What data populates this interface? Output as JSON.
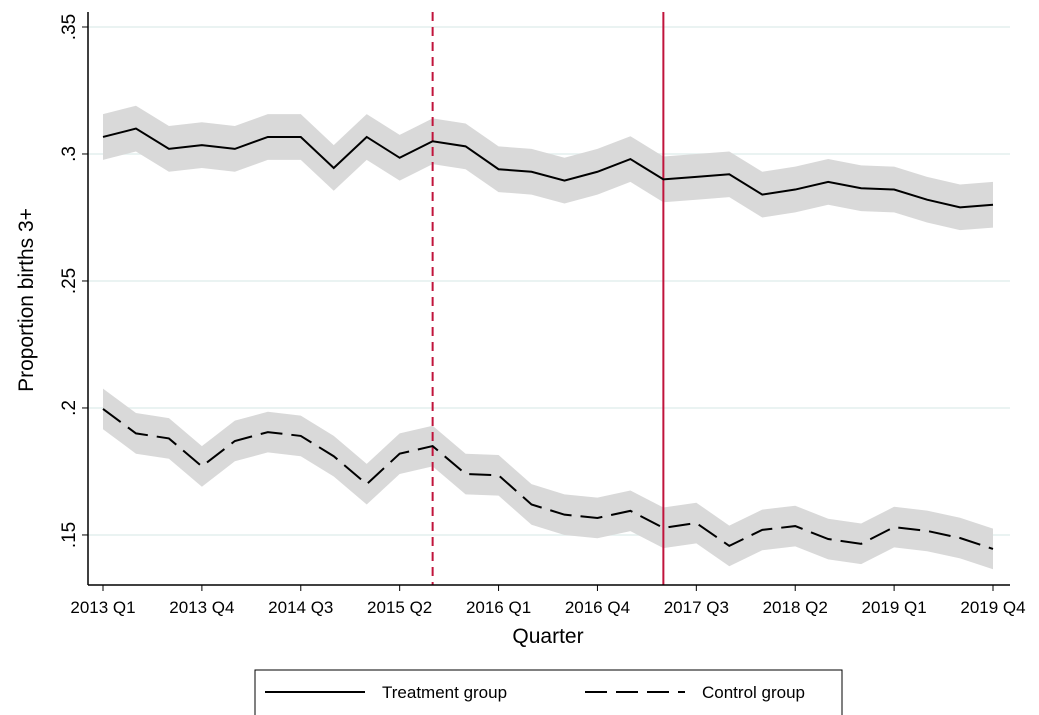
{
  "chart_data": {
    "type": "line",
    "x_label": "Quarter",
    "y_label": "Proportion births 3+",
    "categories": [
      "2013 Q1",
      null,
      null,
      "2013 Q4",
      null,
      null,
      "2014 Q3",
      null,
      null,
      "2015 Q2",
      null,
      null,
      "2016 Q1",
      null,
      null,
      "2016 Q4",
      null,
      null,
      "2017 Q3",
      null,
      null,
      "2018 Q2",
      null,
      null,
      "2019 Q1",
      null,
      null,
      "2019 Q4"
    ],
    "ylim": [
      0.1303,
      0.3559
    ],
    "yticks": [
      {
        "value": 0.15,
        "label": ".15"
      },
      {
        "value": 0.2,
        "label": ".2"
      },
      {
        "value": 0.25,
        "label": ".25"
      },
      {
        "value": 0.3,
        "label": ".3"
      },
      {
        "value": 0.35,
        "label": ".35"
      }
    ],
    "grid": true,
    "grid_color": "#e3efee",
    "band_color": "#d9d9d9",
    "vlines": [
      {
        "x": 10,
        "style": "dashed",
        "color": "#c0143c"
      },
      {
        "x": 17,
        "style": "solid",
        "color": "#c0143c"
      }
    ],
    "series": [
      {
        "name": "Treatment group",
        "color": "#000000",
        "style": "solid",
        "values": [
          0.3067,
          0.31,
          0.302,
          0.3035,
          0.302,
          0.3067,
          0.3067,
          0.2945,
          0.3067,
          0.2985,
          0.305,
          0.303,
          0.294,
          0.293,
          0.2895,
          0.293,
          0.298,
          0.29,
          0.291,
          0.292,
          0.284,
          0.286,
          0.289,
          0.2865,
          0.286,
          0.282,
          0.279,
          0.28
        ],
        "lower": [
          0.2977,
          0.301,
          0.293,
          0.2945,
          0.293,
          0.2977,
          0.2977,
          0.2855,
          0.2977,
          0.2895,
          0.296,
          0.294,
          0.285,
          0.284,
          0.2805,
          0.284,
          0.289,
          0.281,
          0.282,
          0.283,
          0.275,
          0.277,
          0.28,
          0.2775,
          0.277,
          0.273,
          0.27,
          0.271
        ],
        "upper": [
          0.3157,
          0.319,
          0.311,
          0.3125,
          0.311,
          0.3157,
          0.3157,
          0.3035,
          0.3157,
          0.3075,
          0.314,
          0.312,
          0.303,
          0.302,
          0.2985,
          0.302,
          0.307,
          0.299,
          0.3,
          0.301,
          0.293,
          0.295,
          0.298,
          0.2955,
          0.295,
          0.291,
          0.288,
          0.289
        ]
      },
      {
        "name": "Control group",
        "color": "#000000",
        "style": "dashed",
        "values": [
          0.1996,
          0.19,
          0.188,
          0.177,
          0.187,
          0.1905,
          0.189,
          0.181,
          0.17,
          0.182,
          0.185,
          0.174,
          0.1735,
          0.162,
          0.158,
          0.1567,
          0.1595,
          0.1528,
          0.1547,
          0.1457,
          0.152,
          0.1535,
          0.1484,
          0.1465,
          0.1531,
          0.1516,
          0.1488,
          0.1445
        ],
        "lower": [
          0.1916,
          0.182,
          0.18,
          0.169,
          0.179,
          0.1825,
          0.181,
          0.173,
          0.162,
          0.174,
          0.177,
          0.166,
          0.1655,
          0.154,
          0.15,
          0.1487,
          0.1515,
          0.1448,
          0.1467,
          0.1377,
          0.144,
          0.1455,
          0.1404,
          0.1385,
          0.1451,
          0.1436,
          0.1408,
          0.1365
        ],
        "upper": [
          0.2076,
          0.198,
          0.196,
          0.185,
          0.195,
          0.1985,
          0.197,
          0.189,
          0.178,
          0.19,
          0.193,
          0.182,
          0.1815,
          0.17,
          0.166,
          0.1647,
          0.1675,
          0.1608,
          0.1627,
          0.1537,
          0.16,
          0.1615,
          0.1564,
          0.1545,
          0.1611,
          0.1596,
          0.1568,
          0.1525
        ]
      }
    ]
  }
}
